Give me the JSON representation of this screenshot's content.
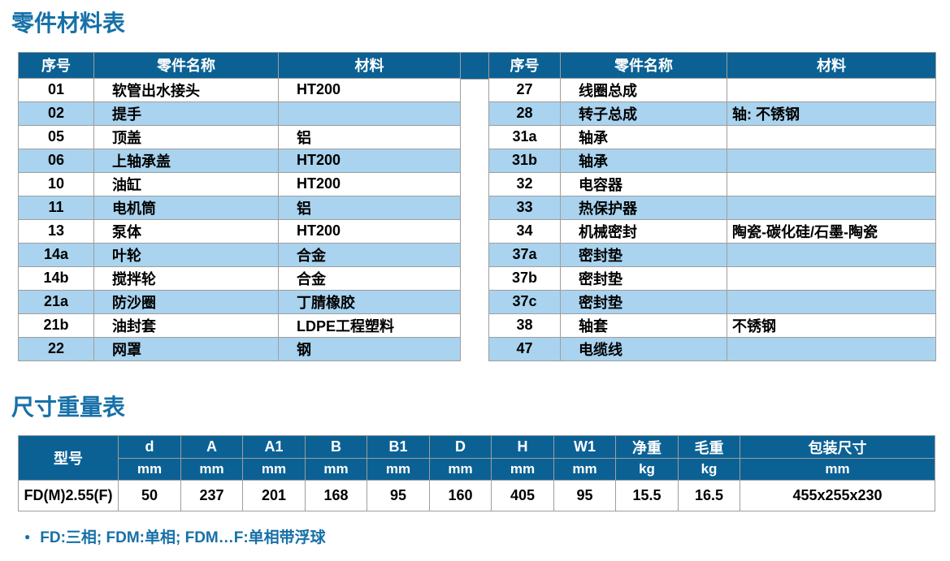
{
  "colors": {
    "header_bg": "#0b6194",
    "stripe": "#a9d3ee",
    "border": "#9e9e9e",
    "title": "#1670a8"
  },
  "parts_section": {
    "title": "零件材料表",
    "columns": [
      "序号",
      "零件名称",
      "材料"
    ],
    "left_rows": [
      {
        "no": "01",
        "name": "软管出水接头",
        "material": "HT200"
      },
      {
        "no": "02",
        "name": "提手",
        "material": ""
      },
      {
        "no": "05",
        "name": "顶盖",
        "material": "铝"
      },
      {
        "no": "06",
        "name": "上轴承盖",
        "material": "HT200"
      },
      {
        "no": "10",
        "name": "油缸",
        "material": "HT200"
      },
      {
        "no": "11",
        "name": "电机筒",
        "material": "铝"
      },
      {
        "no": "13",
        "name": "泵体",
        "material": "HT200"
      },
      {
        "no": "14a",
        "name": "叶轮",
        "material": "合金"
      },
      {
        "no": "14b",
        "name": "搅拌轮",
        "material": "合金"
      },
      {
        "no": "21a",
        "name": "防沙圈",
        "material": "丁腈橡胶"
      },
      {
        "no": "21b",
        "name": "油封套",
        "material": "LDPE工程塑料"
      },
      {
        "no": "22",
        "name": "网罩",
        "material": "钢"
      }
    ],
    "right_rows": [
      {
        "no": "27",
        "name": "线圈总成",
        "material": ""
      },
      {
        "no": "28",
        "name": "转子总成",
        "material": "轴: 不锈钢"
      },
      {
        "no": "31a",
        "name": "轴承",
        "material": ""
      },
      {
        "no": "31b",
        "name": "轴承",
        "material": ""
      },
      {
        "no": "32",
        "name": "电容器",
        "material": ""
      },
      {
        "no": "33",
        "name": "热保护器",
        "material": ""
      },
      {
        "no": "34",
        "name": "机械密封",
        "material": "陶瓷-碳化硅/石墨-陶瓷"
      },
      {
        "no": "37a",
        "name": "密封垫",
        "material": ""
      },
      {
        "no": "37b",
        "name": "密封垫",
        "material": ""
      },
      {
        "no": "37c",
        "name": "密封垫",
        "material": ""
      },
      {
        "no": "38",
        "name": "轴套",
        "material": "不锈钢"
      },
      {
        "no": "47",
        "name": "电缆线",
        "material": ""
      }
    ]
  },
  "dims_section": {
    "title": "尺寸重量表",
    "model_header": "型号",
    "columns": [
      {
        "label": "d",
        "unit": "mm"
      },
      {
        "label": "A",
        "unit": "mm"
      },
      {
        "label": "A1",
        "unit": "mm"
      },
      {
        "label": "B",
        "unit": "mm"
      },
      {
        "label": "B1",
        "unit": "mm"
      },
      {
        "label": "D",
        "unit": "mm"
      },
      {
        "label": "H",
        "unit": "mm"
      },
      {
        "label": "W1",
        "unit": "mm"
      },
      {
        "label": "净重",
        "unit": "kg"
      },
      {
        "label": "毛重",
        "unit": "kg"
      },
      {
        "label": "包装尺寸",
        "unit": "mm"
      }
    ],
    "rows": [
      {
        "model": "FD(M)2.55(F)",
        "values": [
          "50",
          "237",
          "201",
          "168",
          "95",
          "160",
          "405",
          "95",
          "15.5",
          "16.5",
          "455x255x230"
        ]
      }
    ]
  },
  "footnote": {
    "bullet": "●",
    "text": "FD:三相; FDM:单相; FDM…F:单相带浮球"
  }
}
